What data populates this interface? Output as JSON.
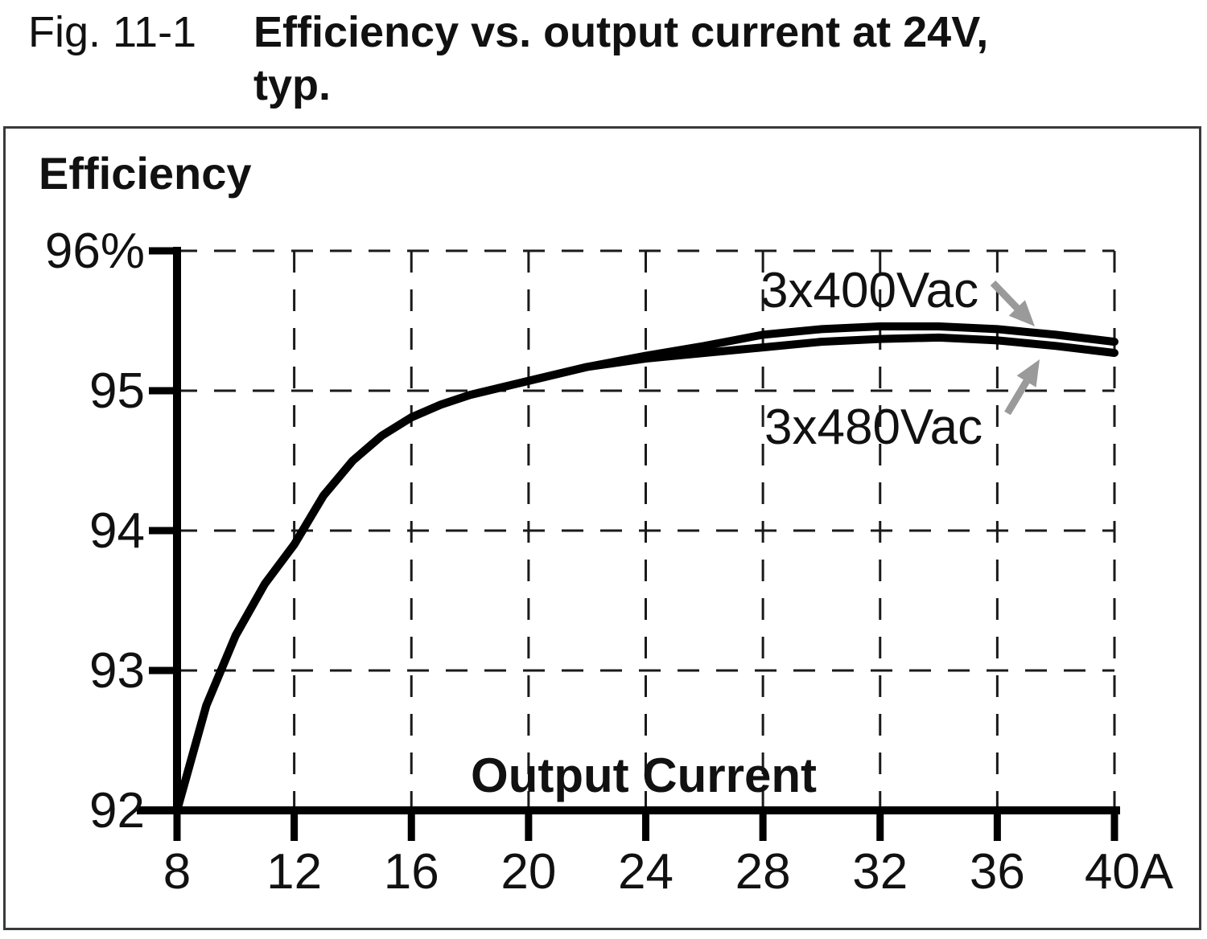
{
  "caption": {
    "figure_label": "Fig. 11-1",
    "title_lines": [
      "Efficiency vs. output current at 24V,",
      "typ."
    ]
  },
  "chart_data": {
    "type": "line",
    "title": "Efficiency vs. output current at 24V, typ.",
    "ylabel": "Efficiency",
    "xlabel": "Output Current",
    "x_unit": "A",
    "y_unit": "%",
    "xlim": [
      8,
      40
    ],
    "ylim": [
      92,
      96
    ],
    "grid": "dashed",
    "legend_position": "annotated-on-plot",
    "x_ticks": {
      "values": [
        8,
        12,
        16,
        20,
        24,
        28,
        32,
        36,
        40
      ],
      "labels": [
        "8",
        "12",
        "16",
        "20",
        "24",
        "28",
        "32",
        "36",
        "40A"
      ]
    },
    "y_ticks": {
      "values": [
        96,
        95,
        94,
        93,
        92
      ],
      "labels": [
        "96%",
        "95",
        "94",
        "93",
        "92"
      ]
    },
    "x": [
      8,
      9,
      10,
      11,
      12,
      13,
      14,
      15,
      16,
      17,
      18,
      19,
      20,
      22,
      24,
      26,
      28,
      30,
      32,
      34,
      36,
      38,
      40
    ],
    "series": [
      {
        "name": "3x400Vac",
        "values": [
          92.0,
          92.75,
          93.25,
          93.62,
          93.9,
          94.25,
          94.5,
          94.68,
          94.81,
          94.9,
          94.97,
          95.02,
          95.07,
          95.17,
          95.25,
          95.32,
          95.4,
          95.44,
          95.46,
          95.46,
          95.44,
          95.4,
          95.35
        ]
      },
      {
        "name": "3x480Vac",
        "values": [
          92.0,
          92.75,
          93.25,
          93.62,
          93.9,
          94.25,
          94.5,
          94.68,
          94.81,
          94.9,
          94.97,
          95.02,
          95.07,
          95.17,
          95.23,
          95.27,
          95.31,
          95.35,
          95.37,
          95.38,
          95.36,
          95.32,
          95.27
        ]
      }
    ],
    "annotations": [
      {
        "label": "3x400Vac"
      },
      {
        "label": "3x480Vac"
      }
    ],
    "colors": {
      "curve": "#000000",
      "grid": "#1a1a1a",
      "axis": "#000000",
      "arrow": "#9a9a9a",
      "text": "#111111",
      "frame": "#3a3a3a"
    }
  }
}
